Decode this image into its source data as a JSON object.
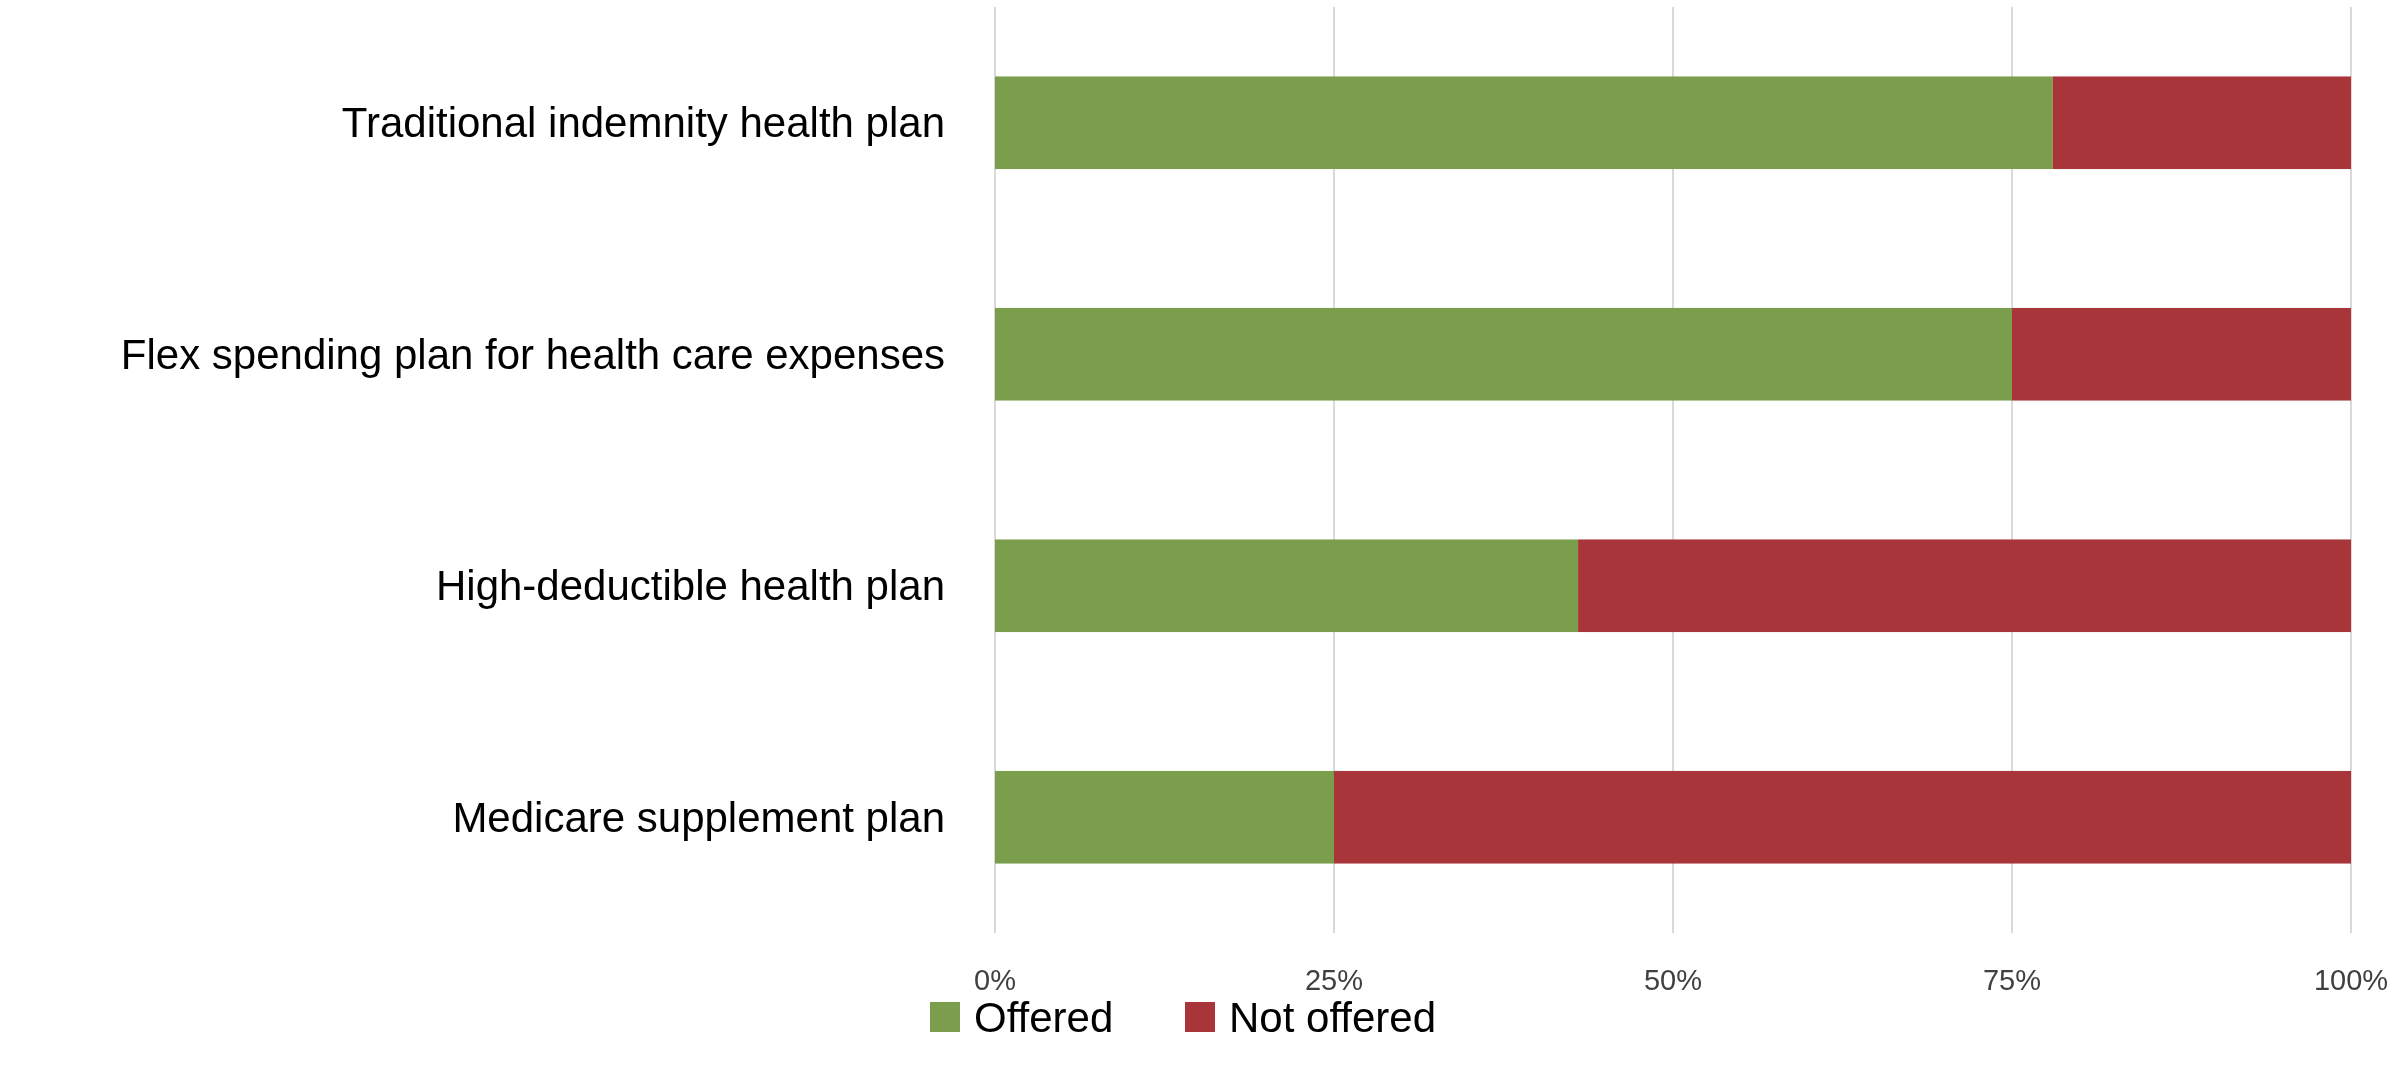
{
  "chart_data": {
    "type": "bar",
    "orientation": "horizontal",
    "stacked": true,
    "categories": [
      "Traditional indemnity health plan",
      "Flex spending plan for health care expenses",
      "High-deductible health plan",
      "Medicare supplement plan"
    ],
    "series": [
      {
        "name": "Offered",
        "color": "#7a9e4c",
        "values": [
          78,
          75,
          43,
          25
        ]
      },
      {
        "name": "Not offered",
        "color": "#a7353a",
        "values": [
          22,
          25,
          57,
          75
        ]
      }
    ],
    "xlim": [
      0,
      100
    ],
    "xticks": [
      {
        "value": 0,
        "label": "0%"
      },
      {
        "value": 25,
        "label": "25%"
      },
      {
        "value": 50,
        "label": "50%"
      },
      {
        "value": 75,
        "label": "75%"
      },
      {
        "value": 100,
        "label": "100%"
      }
    ],
    "grid": "x",
    "legend": "bottom"
  }
}
